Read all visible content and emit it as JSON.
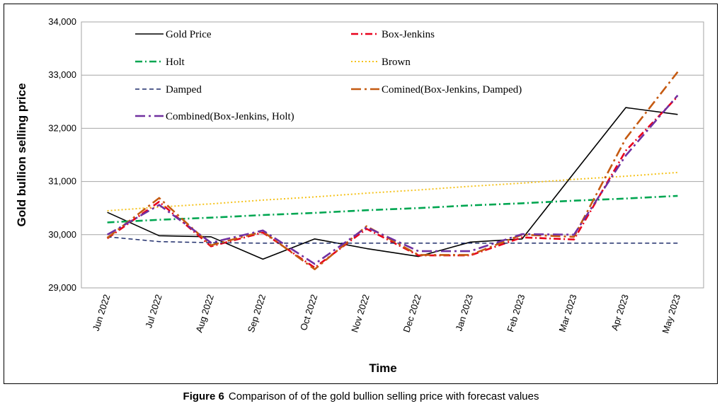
{
  "caption": {
    "label": "Figure 6",
    "text": "Comparison of of the gold bullion selling price with forecast values"
  },
  "chart_data": {
    "type": "line",
    "xlabel": "Time",
    "ylabel": "Gold bullion selling price",
    "ylim": [
      29000,
      34000
    ],
    "yticks": [
      "29,000",
      "30,000",
      "31,000",
      "32,000",
      "33,000",
      "34,000"
    ],
    "grid": "horizontal",
    "legend_position": "top",
    "categories": [
      "Jun 2022",
      "Jul 2022",
      "Aug 2022",
      "Sep 2022",
      "Oct 2022",
      "Nov 2022",
      "Dec 2022",
      "Jan 2023",
      "Feb 2023",
      "Mar 2023",
      "Apr 2023",
      "May 2023"
    ],
    "series": [
      {
        "name": "Gold Price",
        "color": "#000000",
        "dash": "solid",
        "values": [
          30420,
          29980,
          29960,
          29540,
          29920,
          29740,
          29590,
          29860,
          29920,
          31160,
          32390,
          32260
        ]
      },
      {
        "name": "Box-Jenkins",
        "color": "#e8001c",
        "dash": "dashdot",
        "values": [
          29930,
          30620,
          29780,
          30040,
          29380,
          30110,
          29610,
          29610,
          29950,
          29910,
          31580,
          32600
        ]
      },
      {
        "name": "Holt",
        "color": "#00a651",
        "dash": "dashdot",
        "values": [
          30230,
          30280,
          30320,
          30370,
          30410,
          30460,
          30500,
          30550,
          30590,
          30640,
          30680,
          30730
        ]
      },
      {
        "name": "Brown",
        "color": "#f5c31d",
        "dash": "dotted",
        "values": [
          30450,
          30520,
          30580,
          30650,
          30710,
          30780,
          30840,
          30910,
          30970,
          31040,
          31100,
          31170
        ]
      },
      {
        "name": "Damped",
        "color": "#1f2d6b",
        "dash": "dashed",
        "values": [
          29960,
          29870,
          29850,
          29840,
          29840,
          29840,
          29840,
          29840,
          29840,
          29840,
          29840,
          29840
        ]
      },
      {
        "name": "Comined(Box-Jenkins, Damped)",
        "color": "#c55a11",
        "dash": "longdashdot",
        "values": [
          29940,
          30690,
          29800,
          30060,
          29350,
          30160,
          29620,
          29620,
          30000,
          29960,
          31810,
          33060
        ]
      },
      {
        "name": "Combined(Box-Jenkins, Holt)",
        "color": "#7030a0",
        "dash": "longdashdot",
        "values": [
          30000,
          30560,
          29850,
          30080,
          29450,
          30140,
          29690,
          29690,
          30010,
          30000,
          31490,
          32620
        ]
      }
    ]
  }
}
